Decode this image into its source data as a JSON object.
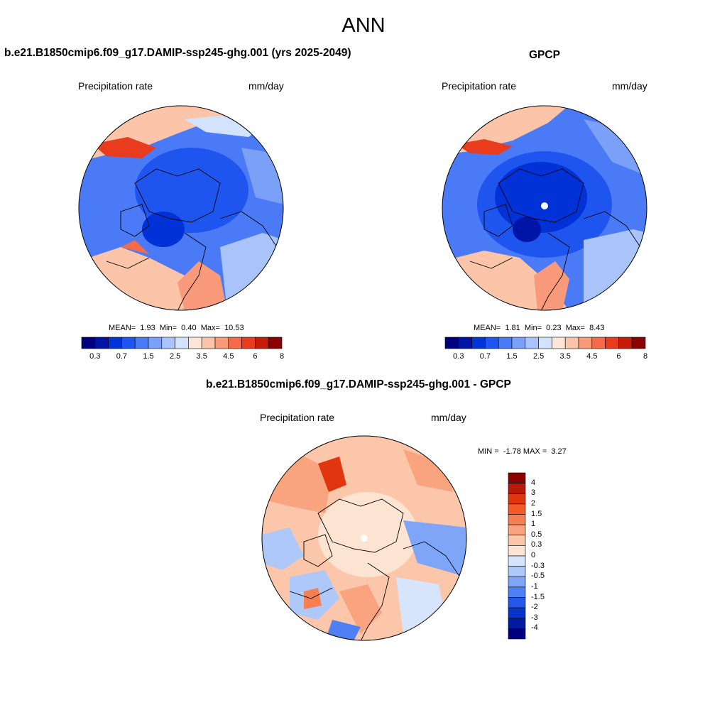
{
  "page": {
    "title": "ANN"
  },
  "panels": [
    {
      "title": "b.e21.B1850cmip6.f09_g17.DAMIP-ssp245-ghg.001 (yrs 2025-2049)",
      "variable": "Precipitation rate",
      "units": "mm/day",
      "stats": {
        "mean_label": "MEAN=",
        "mean": "1.93",
        "min_label": "Min=",
        "min": "0.40",
        "max_label": "Max=",
        "max": "10.53"
      }
    },
    {
      "title": "GPCP",
      "variable": "Precipitation rate",
      "units": "mm/day",
      "stats": {
        "mean_label": "MEAN=",
        "mean": "1.81",
        "min_label": "Min=",
        "min": "0.23",
        "max_label": "Max=",
        "max": "8.43"
      }
    },
    {
      "title": "b.e21.B1850cmip6.f09_g17.DAMIP-ssp245-ghg.001 - GPCP",
      "variable": "Precipitation rate",
      "units": "mm/day",
      "stats": {
        "min_label": "MIN =",
        "min": "-1.78",
        "max_label": "MAX =",
        "max": "3.27"
      }
    }
  ],
  "colorbars": {
    "precip": {
      "colors": [
        "#00007f",
        "#0014a8",
        "#0032d8",
        "#1f55ef",
        "#4a7af5",
        "#7aa0f8",
        "#a9c3fb",
        "#d3e2fd",
        "#fde6d6",
        "#fcc5aa",
        "#f99b7a",
        "#f56a47",
        "#e93c1f",
        "#c41b0a",
        "#8b0000"
      ],
      "labels": [
        "0.3",
        "0.7",
        "1.5",
        "2.5",
        "3.5",
        "4.5",
        "6",
        "8"
      ]
    },
    "diff": {
      "colors": [
        "#8b0000",
        "#b8190b",
        "#e0350f",
        "#f45a26",
        "#f77f52",
        "#f9a37f",
        "#fbc6aa",
        "#fde3d2",
        "#d6e5fc",
        "#aec8fa",
        "#7ea5f7",
        "#4f80f3",
        "#2558ea",
        "#0634cc",
        "#001aa0",
        "#00007f"
      ],
      "labels": [
        "4",
        "3",
        "2",
        "1.5",
        "1",
        "0.5",
        "0.3",
        "0",
        "-0.3",
        "-0.5",
        "-1",
        "-1.5",
        "-2",
        "-3",
        "-4"
      ]
    }
  }
}
